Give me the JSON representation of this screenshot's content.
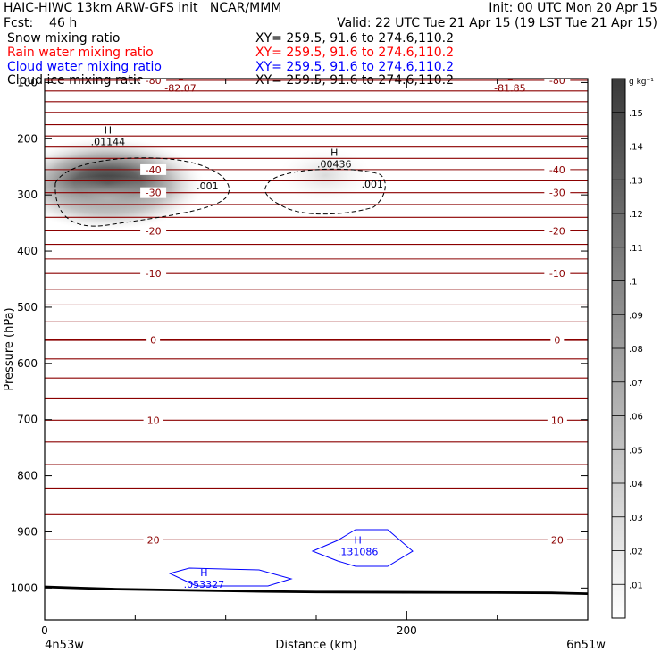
{
  "header": {
    "title_left": "HAIC-HIWC 13km ARW-GFS init   NCAR/MMM",
    "init": "Init: 00 UTC Mon 20 Apr 15",
    "fcst": "Fcst:    46 h",
    "valid": "Valid: 22 UTC Tue 21 Apr 15 (19 LST Tue 21 Apr 15)",
    "fields": [
      {
        "name": "Snow mixing ratio",
        "xy": "XY= 259.5, 91.6 to 274.6,110.2",
        "color": "#000000"
      },
      {
        "name": "Rain water mixing ratio",
        "xy": "XY= 259.5, 91.6 to 274.6,110.2",
        "color": "#ff0000"
      },
      {
        "name": "Cloud water mixing ratio",
        "xy": "XY= 259.5, 91.6 to 274.6,110.2",
        "color": "#0000ff"
      },
      {
        "name": "Cloud ice mixing ratio",
        "xy": "XY= 259.5, 91.6 to 274.6,110.2",
        "color": "#000000"
      }
    ]
  },
  "chart_data": {
    "type": "heatmap",
    "xlabel": "Distance (km)",
    "ylabel": "Pressure (hPa)",
    "xlim": [
      0,
      300
    ],
    "ylim": [
      1050,
      50
    ],
    "x_ticks": [
      0,
      200
    ],
    "x_minor_ticks": [
      50,
      100,
      150,
      250,
      300
    ],
    "y_ticks": [
      100,
      200,
      300,
      400,
      500,
      600,
      700,
      800,
      900,
      1000
    ],
    "endpoint_labels": {
      "left": "4n53w",
      "right": "6n51w"
    },
    "colorbar": {
      "unit": "g kg⁻¹",
      "ticks": [
        ".01",
        ".02",
        ".03",
        ".04",
        ".05",
        ".06",
        ".07",
        ".08",
        ".09",
        ".1",
        ".11",
        ".12",
        ".13",
        ".14",
        ".15"
      ],
      "min": 0,
      "max": 0.16
    },
    "temperature_contours": {
      "color": "#8b0000",
      "lines": [
        {
          "p": 96,
          "label": "-80"
        },
        {
          "p": 115
        },
        {
          "p": 134
        },
        {
          "p": 153
        },
        {
          "p": 175
        },
        {
          "p": 195
        },
        {
          "p": 215
        },
        {
          "p": 235
        },
        {
          "p": 255,
          "label": "-40"
        },
        {
          "p": 275
        },
        {
          "p": 296,
          "label": "-30"
        },
        {
          "p": 317
        },
        {
          "p": 340
        },
        {
          "p": 364,
          "label": "-20"
        },
        {
          "p": 388
        },
        {
          "p": 414
        },
        {
          "p": 440,
          "label": "-10"
        },
        {
          "p": 468
        },
        {
          "p": 496
        },
        {
          "p": 526
        },
        {
          "p": 558,
          "label": "0",
          "bold": true
        },
        {
          "p": 592
        },
        {
          "p": 626
        },
        {
          "p": 663
        },
        {
          "p": 701,
          "label": "10"
        },
        {
          "p": 740
        },
        {
          "p": 780
        },
        {
          "p": 822
        },
        {
          "p": 868
        },
        {
          "p": 914,
          "label": "20"
        }
      ]
    },
    "extrema_labels": [
      {
        "type": "L",
        "value": "-82.07",
        "x": 75,
        "p": 105
      },
      {
        "type": "L",
        "value": "-81.85",
        "x": 257,
        "p": 105
      },
      {
        "type": "H",
        "value": ".01144",
        "x": 35,
        "p": 200
      },
      {
        "type": "H",
        "value": ".00436",
        "x": 160,
        "p": 240
      },
      {
        "type": "H",
        "value": ".131086",
        "x": 173,
        "p": 930
      },
      {
        "type": "H",
        "value": ".053327",
        "x": 88,
        "p": 988
      }
    ],
    "contour_labels": [
      {
        "value": ".001",
        "x": 90,
        "p": 290
      },
      {
        "value": ".001",
        "x": 181,
        "p": 287
      }
    ],
    "shaded_max": [
      {
        "x": 30,
        "p": 285,
        "value": 0.13
      },
      {
        "x": 160,
        "p": 265,
        "value": 0.02
      }
    ]
  }
}
